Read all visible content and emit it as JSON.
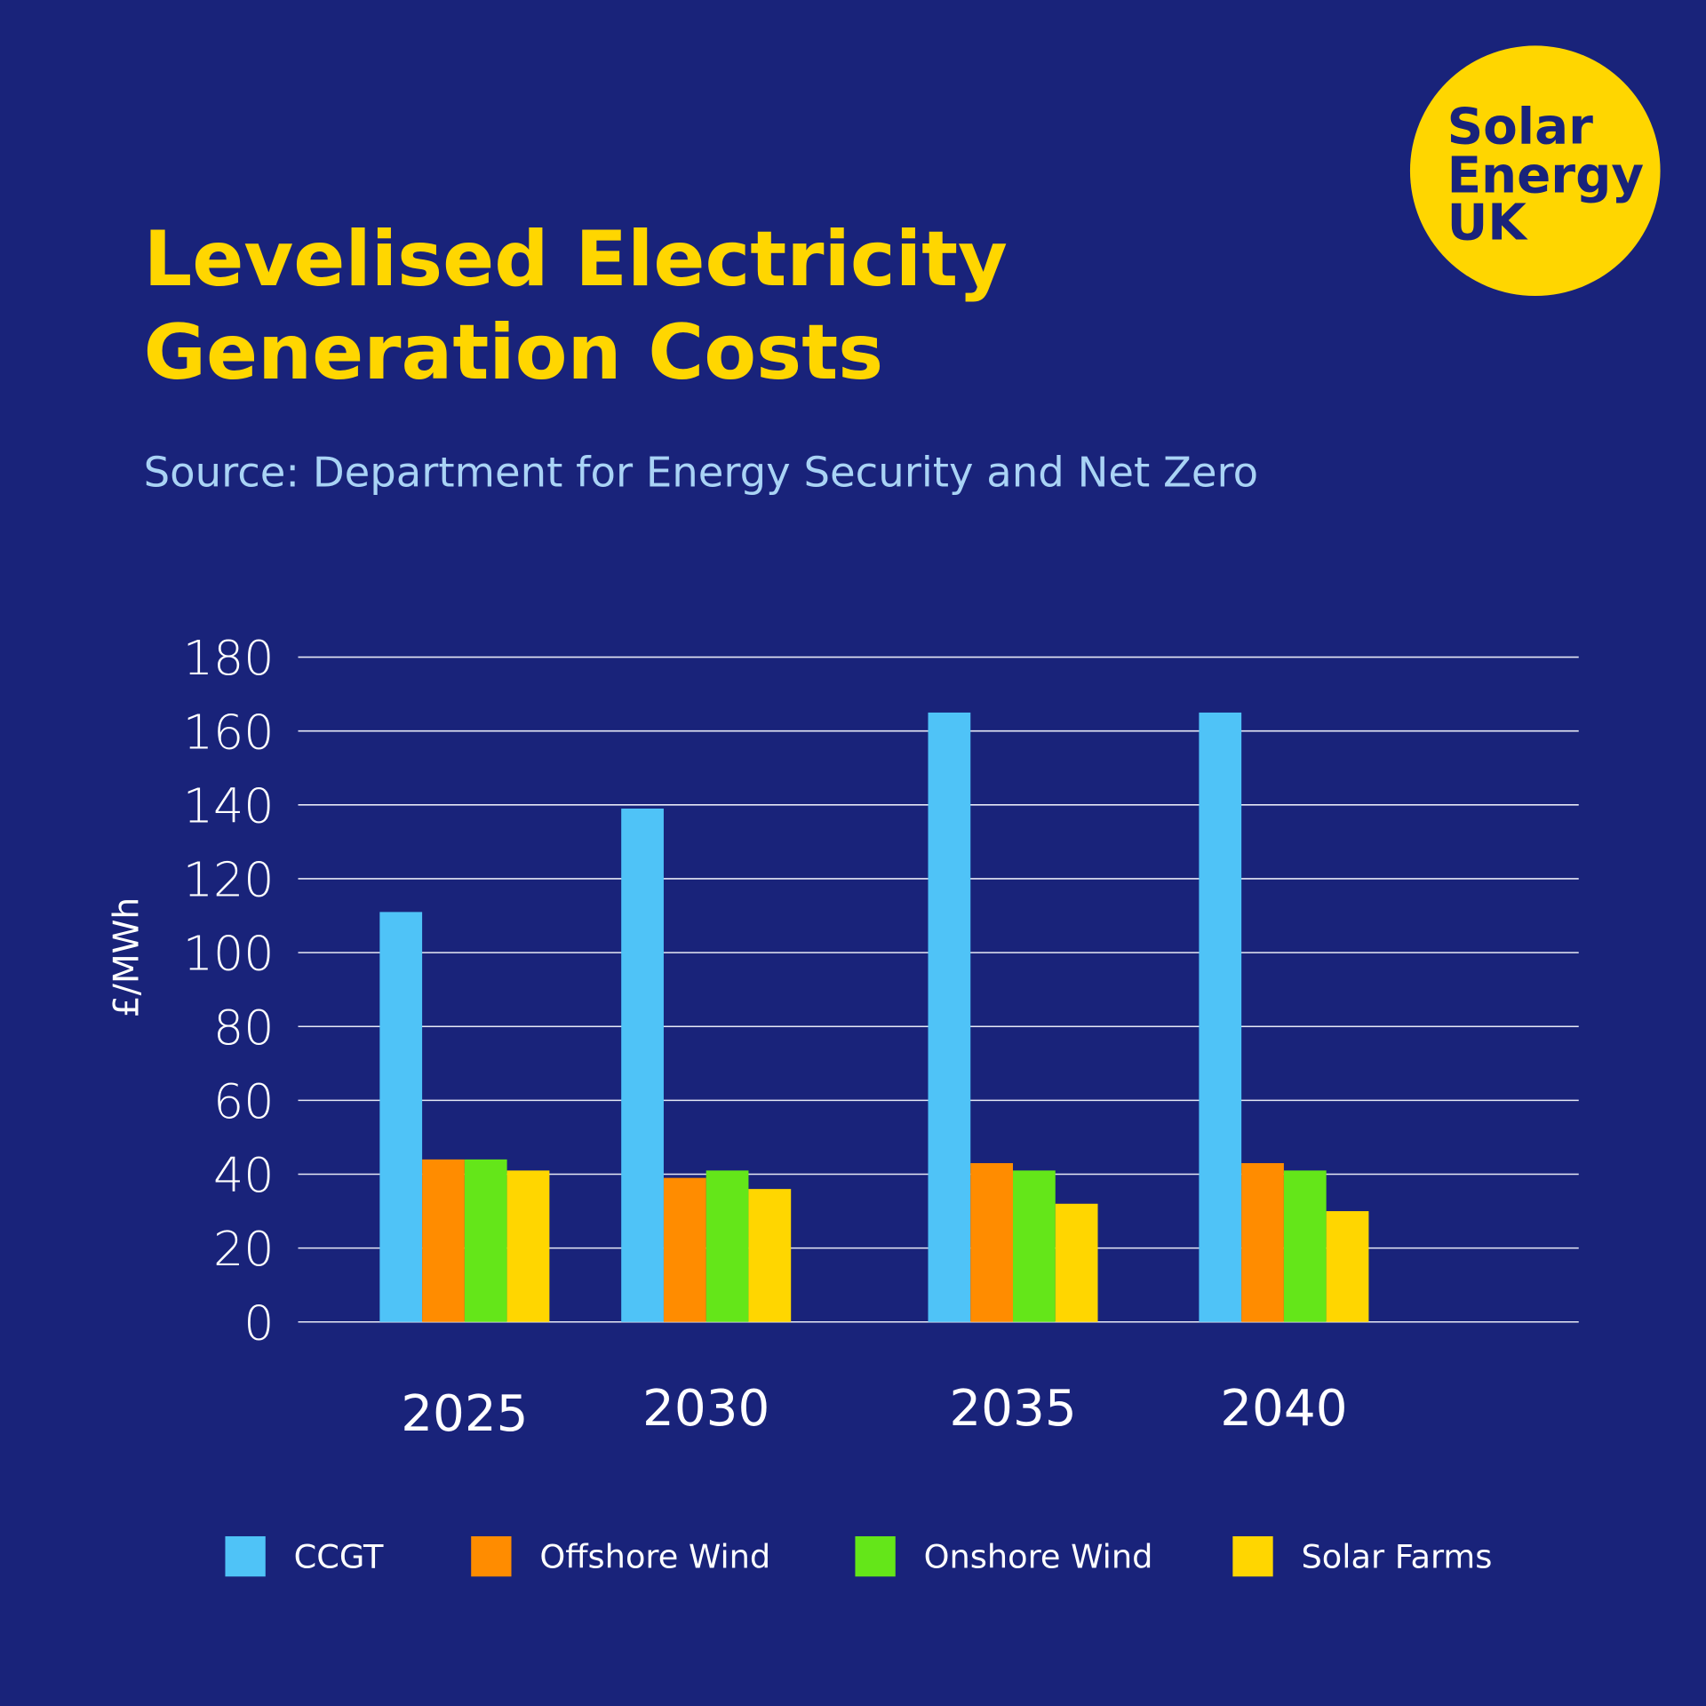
{
  "title_line1": "Levelised Electricity",
  "title_line2": "Generation Costs",
  "source": "Source: Department for Energy Security and Net Zero",
  "logo": {
    "line1": "Solar",
    "line2": "Energy",
    "line3": "UK",
    "color": "#ffd600"
  },
  "colors": {
    "background": "#19237a",
    "title": "#ffd600"
  },
  "chart_data": {
    "type": "bar",
    "ylabel": "£/MWh",
    "xlabel": "",
    "ylim": [
      0,
      180
    ],
    "yticks": [
      "0",
      "20",
      "40",
      "60",
      "80",
      "100",
      "120",
      "140",
      "160",
      "180"
    ],
    "grid": true,
    "legend": "bottom",
    "categories": [
      "2025",
      "2030",
      "2035",
      "2040"
    ],
    "series": [
      {
        "name": "CCGT",
        "color": "#4fc3f7",
        "values": [
          111,
          139,
          165,
          165
        ]
      },
      {
        "name": "Offshore Wind",
        "color": "#ff8c00",
        "values": [
          44,
          39,
          43,
          43
        ]
      },
      {
        "name": "Onshore Wind",
        "color": "#64e619",
        "values": [
          44,
          41,
          41,
          41
        ]
      },
      {
        "name": "Solar Farms",
        "color": "#ffd600",
        "values": [
          41,
          36,
          32,
          30
        ]
      }
    ]
  }
}
